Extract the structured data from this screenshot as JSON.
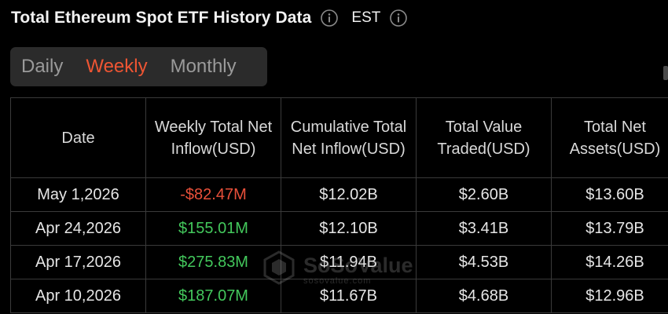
{
  "header": {
    "title": "Total Ethereum Spot ETF History Data",
    "timezone": "EST",
    "icons": [
      "info-icon",
      "info-icon"
    ]
  },
  "tabs": [
    {
      "label": "Daily",
      "active": false
    },
    {
      "label": "Weekly",
      "active": true
    },
    {
      "label": "Monthly",
      "active": false
    }
  ],
  "table": {
    "columns": [
      "Date",
      "Weekly Total Net Inflow(USD)",
      "Cumulative Total Net Inflow(USD)",
      "Total Value Traded(USD)",
      "Total Net Assets(USD)"
    ],
    "rows": [
      {
        "date": "May 1,2026",
        "weekly_net_inflow": "-$82.47M",
        "cumulative_net_inflow": "$12.02B",
        "value_traded": "$2.60B",
        "net_assets": "$13.60B"
      },
      {
        "date": "Apr 24,2026",
        "weekly_net_inflow": "$155.01M",
        "cumulative_net_inflow": "$12.10B",
        "value_traded": "$3.41B",
        "net_assets": "$13.79B"
      },
      {
        "date": "Apr 17,2026",
        "weekly_net_inflow": "$275.83M",
        "cumulative_net_inflow": "$11.94B",
        "value_traded": "$4.53B",
        "net_assets": "$14.26B"
      },
      {
        "date": "Apr 10,2026",
        "weekly_net_inflow": "$187.07M",
        "cumulative_net_inflow": "$11.67B",
        "value_traded": "$4.68B",
        "net_assets": "$12.96B"
      }
    ]
  },
  "watermark": {
    "name": "SoSoValue",
    "url": "sosovalue.com",
    "icon": "sosovalue-logo-icon"
  },
  "colors": {
    "background": "#000000",
    "accent": "#ee5533",
    "positive": "#43c85c",
    "negative": "#e8503a",
    "tab_bar": "#2b2b2b",
    "grid": "#3a3a3a"
  }
}
